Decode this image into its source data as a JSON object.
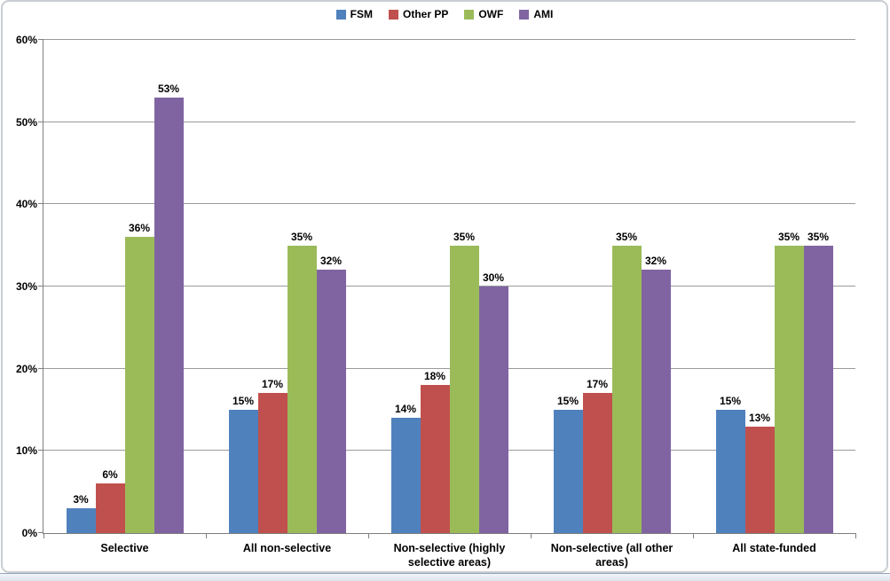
{
  "chart_data": {
    "type": "bar",
    "title": "",
    "categories": [
      "Selective",
      "All non-selective",
      "Non-selective (highly selective areas)",
      "Non-selective (all other areas)",
      "All state-funded"
    ],
    "series": [
      {
        "name": "FSM",
        "color": "#4F81BD",
        "values": [
          3,
          15,
          14,
          15,
          15
        ]
      },
      {
        "name": "Other PP",
        "color": "#C0504D",
        "values": [
          6,
          17,
          18,
          17,
          13
        ]
      },
      {
        "name": "OWF",
        "color": "#9BBB59",
        "values": [
          36,
          35,
          35,
          35,
          35
        ]
      },
      {
        "name": "AMI",
        "color": "#8064A2",
        "values": [
          53,
          32,
          30,
          32,
          35
        ]
      }
    ],
    "value_label_suffix": "%",
    "ylim": [
      0,
      60
    ],
    "ytick_step": 10,
    "yticks": [
      "0%",
      "10%",
      "20%",
      "30%",
      "40%",
      "50%",
      "60%"
    ],
    "grid": true,
    "legend_position": "top"
  },
  "colors": {
    "gridline": "#9a9a9a",
    "axis": "#7f7f7f",
    "frame": "#c9cdd2",
    "text": "#000000",
    "background": "#ffffff"
  }
}
